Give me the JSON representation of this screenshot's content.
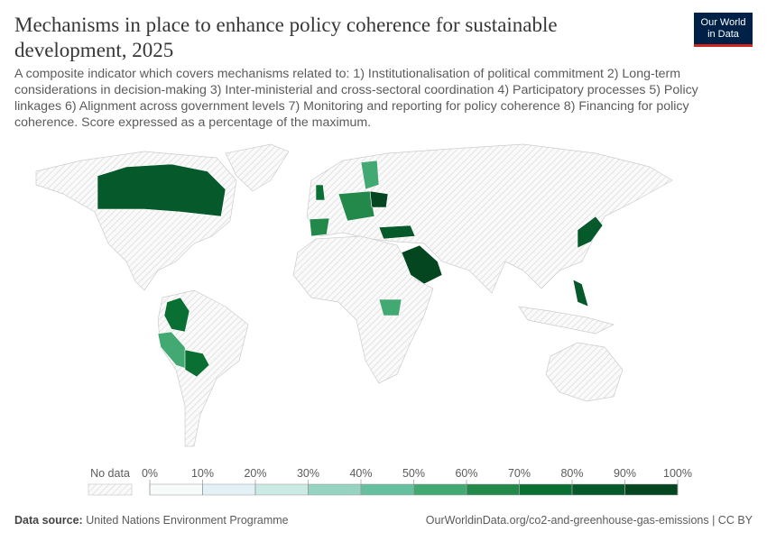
{
  "chart_data": {
    "type": "map",
    "title": "Mechanisms in place to enhance policy coherence for sustainable development, 2025",
    "subtitle": "A composite indicator which covers mechanisms related to: 1) Institutionalisation of political commitment 2) Long-term considerations in decision-making 3) Inter-ministerial and cross-sectoral coordination 4) Participatory processes 5) Policy linkages 6) Alignment across government levels 7) Monitoring and reporting for policy coherence 8) Financing for policy coherence. Score expressed as a percentage of the maximum.",
    "logo": {
      "line1": "Our World",
      "line2": "in Data"
    },
    "values": [
      85,
      95,
      75,
      55,
      75,
      80,
      80,
      65,
      80,
      55,
      65,
      90,
      55,
      70
    ],
    "no_data_label": "No data",
    "legend_ticks": [
      {
        "value": 0,
        "label": "0%"
      },
      {
        "value": 10,
        "label": "10%"
      },
      {
        "value": 20,
        "label": "20%"
      },
      {
        "value": 30,
        "label": "30%"
      },
      {
        "value": 40,
        "label": "40%"
      },
      {
        "value": 50,
        "label": "50%"
      },
      {
        "value": 60,
        "label": "60%"
      },
      {
        "value": 70,
        "label": "70%"
      },
      {
        "value": 80,
        "label": "80%"
      },
      {
        "value": 90,
        "label": "90%"
      },
      {
        "value": 100,
        "label": "100%"
      }
    ],
    "legend_colors": [
      "#f7fbfa",
      "#e3f1f7",
      "#c9ebe3",
      "#96d3c0",
      "#66bf9f",
      "#43a973",
      "#22894a",
      "#0a6f33",
      "#06592a",
      "#03461f"
    ],
    "source_label": "Data source:",
    "source": "United Nations Environment Programme",
    "url": "OurWorldinData.org/co2-and-greenhouse-gas-emissions | CC BY"
  }
}
